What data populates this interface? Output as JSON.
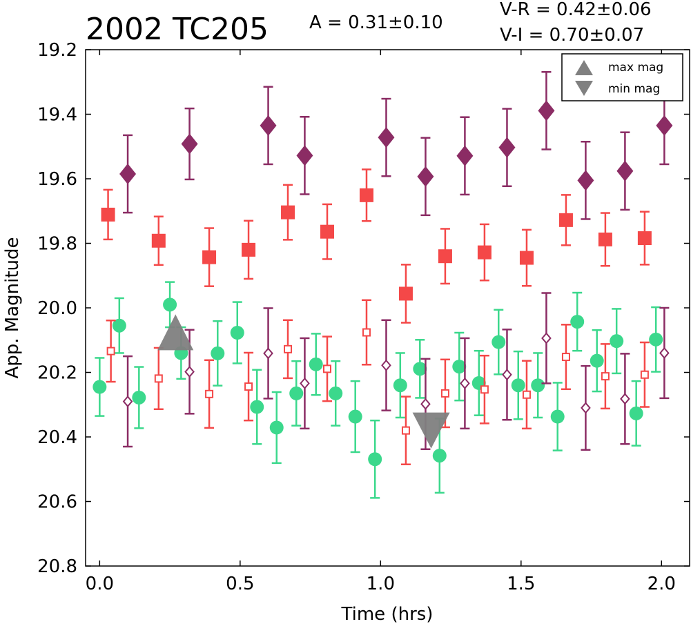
{
  "chart_data": {
    "type": "scatter",
    "title": "2002 TC205",
    "amplitude_label": "A  = 0.31±0.10",
    "color_labels": [
      "V-R = 0.42±0.06",
      "V-I  = 0.70±0.07"
    ],
    "xlabel": "Time (hrs)",
    "ylabel": "App. Magnitude",
    "xlim": [
      -0.05,
      2.1
    ],
    "ylim": [
      20.8,
      19.2
    ],
    "y_inverted": true,
    "xticks": [
      "0.0",
      "0.5",
      "1.0",
      "1.5",
      "2.0"
    ],
    "yticks": [
      "19.2",
      "19.4",
      "19.6",
      "19.8",
      "20.0",
      "20.2",
      "20.4",
      "20.6",
      "20.8"
    ],
    "grid": false,
    "legend": {
      "placement": "top-right",
      "entries": [
        {
          "name": "max mag",
          "marker": "triangle-up",
          "color": "#808080"
        },
        {
          "name": "min mag",
          "marker": "triangle-down",
          "color": "#808080"
        }
      ]
    },
    "series": [
      {
        "marker": "diamond-filled",
        "color": "#8b2c64",
        "x": [
          0.1,
          0.32,
          0.6,
          0.73,
          1.02,
          1.16,
          1.3,
          1.45,
          1.59,
          1.73,
          1.87,
          2.01
        ],
        "y": [
          19.585,
          19.492,
          19.435,
          19.528,
          19.472,
          19.593,
          19.529,
          19.503,
          19.389,
          19.605,
          19.576,
          19.435
        ],
        "err": [
          0.12,
          0.11,
          0.12,
          0.12,
          0.12,
          0.12,
          0.12,
          0.12,
          0.12,
          0.12,
          0.12,
          0.12
        ]
      },
      {
        "marker": "square-filled",
        "color": "#f44848",
        "x": [
          0.03,
          0.21,
          0.39,
          0.53,
          0.67,
          0.81,
          0.95,
          1.09,
          1.23,
          1.37,
          1.52,
          1.66,
          1.8,
          1.94
        ],
        "y": [
          19.711,
          19.792,
          19.843,
          19.82,
          19.704,
          19.764,
          19.651,
          19.956,
          19.84,
          19.828,
          19.845,
          19.728,
          19.788,
          19.784
        ],
        "err": [
          0.077,
          0.075,
          0.09,
          0.09,
          0.085,
          0.085,
          0.08,
          0.09,
          0.085,
          0.087,
          0.087,
          0.078,
          0.082,
          0.082
        ]
      },
      {
        "marker": "circle-filled",
        "color": "#3bd88c",
        "x": [
          0.0,
          0.07,
          0.14,
          0.25,
          0.29,
          0.42,
          0.49,
          0.56,
          0.63,
          0.7,
          0.77,
          0.84,
          0.91,
          0.98,
          1.07,
          1.14,
          1.21,
          1.28,
          1.35,
          1.42,
          1.49,
          1.56,
          1.63,
          1.7,
          1.77,
          1.84,
          1.91,
          1.98
        ],
        "y": [
          20.245,
          20.055,
          20.278,
          19.99,
          20.14,
          20.141,
          20.077,
          20.307,
          20.371,
          20.265,
          20.175,
          20.265,
          20.337,
          20.469,
          20.24,
          20.189,
          20.458,
          20.182,
          20.233,
          20.106,
          20.24,
          20.24,
          20.337,
          20.043,
          20.164,
          20.103,
          20.327,
          20.098
        ],
        "err": [
          0.09,
          0.085,
          0.095,
          0.07,
          0.08,
          0.1,
          0.095,
          0.115,
          0.11,
          0.1,
          0.095,
          0.1,
          0.11,
          0.12,
          0.1,
          0.09,
          0.115,
          0.105,
          0.1,
          0.1,
          0.105,
          0.1,
          0.105,
          0.09,
          0.095,
          0.1,
          0.1,
          0.1
        ]
      },
      {
        "marker": "square-open",
        "color": "#f44848",
        "x": [
          0.04,
          0.21,
          0.39,
          0.53,
          0.67,
          0.81,
          0.95,
          1.09,
          1.23,
          1.37,
          1.52,
          1.66,
          1.8,
          1.94
        ],
        "y": [
          20.134,
          20.219,
          20.267,
          20.244,
          20.128,
          20.189,
          20.076,
          20.38,
          20.265,
          20.253,
          20.269,
          20.152,
          20.212,
          20.207
        ],
        "err": [
          0.095,
          0.095,
          0.105,
          0.105,
          0.09,
          0.1,
          0.1,
          0.105,
          0.105,
          0.105,
          0.105,
          0.1,
          0.1,
          0.1
        ]
      },
      {
        "marker": "diamond-open",
        "color": "#8b2c64",
        "x": [
          0.1,
          0.32,
          0.6,
          0.73,
          1.02,
          1.16,
          1.3,
          1.45,
          1.59,
          1.73,
          1.87,
          2.01
        ],
        "y": [
          20.29,
          20.198,
          20.141,
          20.234,
          20.178,
          20.298,
          20.234,
          20.207,
          20.094,
          20.31,
          20.282,
          20.14
        ],
        "err": [
          0.14,
          0.13,
          0.14,
          0.14,
          0.14,
          0.14,
          0.14,
          0.14,
          0.14,
          0.13,
          0.14,
          0.14
        ]
      }
    ],
    "extrema": [
      {
        "name": "max mag",
        "marker": "triangle-up",
        "x": 0.27,
        "y": 20.08
      },
      {
        "name": "min mag",
        "marker": "triangle-down",
        "x": 1.18,
        "y": 20.38
      }
    ]
  }
}
